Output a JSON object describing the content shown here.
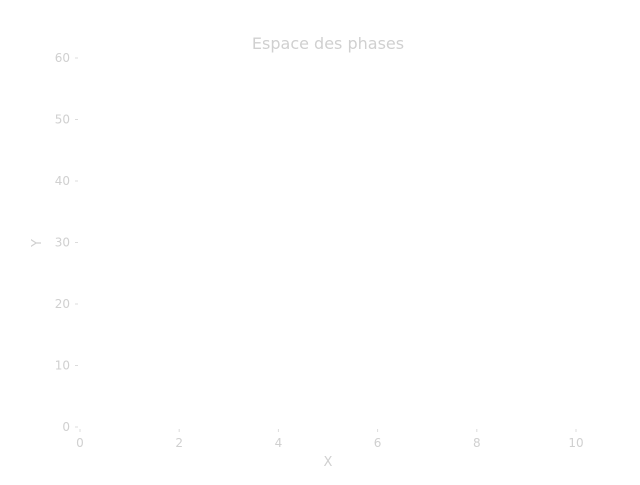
{
  "chart_data": {
    "type": "line",
    "title": "Espace des phases",
    "xlabel": "X",
    "ylabel": "Y",
    "xlim": [
      0,
      10
    ],
    "ylim": [
      0,
      60
    ],
    "xticks": [
      "0",
      "2",
      "4",
      "6",
      "8",
      "10"
    ],
    "yticks": [
      "0",
      "10",
      "20",
      "30",
      "40",
      "50",
      "60"
    ],
    "grid": false,
    "series": []
  }
}
